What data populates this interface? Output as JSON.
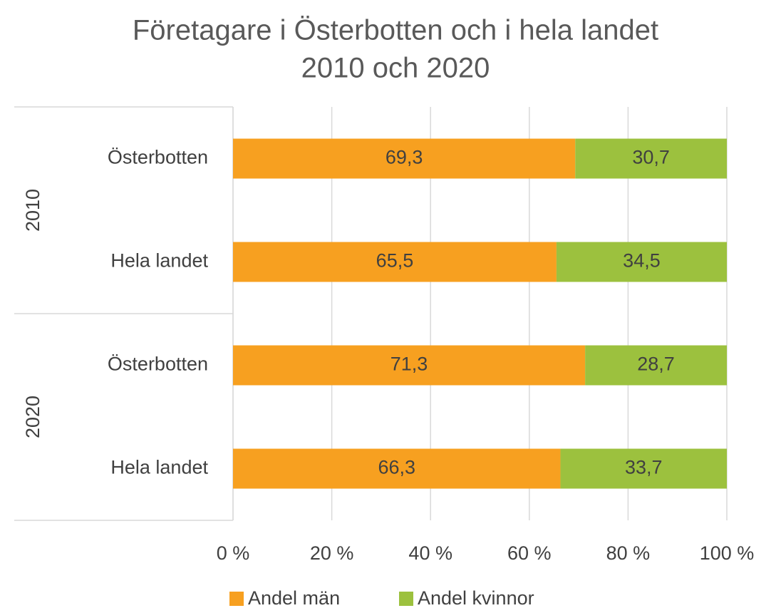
{
  "chart_data": {
    "type": "stacked-bar-horizontal",
    "title": [
      "Företagare i Österbotten och i hela landet",
      "2010 och 2020"
    ],
    "groups": [
      "2010",
      "2020"
    ],
    "categories": [
      "Österbotten",
      "Hela landet",
      "Österbotten",
      "Hela landet"
    ],
    "series": [
      {
        "name": "Andel män",
        "color": "#f7a020",
        "values": [
          69.3,
          65.5,
          71.3,
          66.3
        ],
        "value_labels": [
          "69,3",
          "65,5",
          "71,3",
          "66,3"
        ]
      },
      {
        "name": "Andel kvinnor",
        "color": "#9cc13e",
        "values": [
          30.7,
          34.5,
          28.7,
          33.7
        ],
        "value_labels": [
          "30,7",
          "34,5",
          "28,7",
          "33,7"
        ]
      }
    ],
    "xlim": [
      0,
      100
    ],
    "xticks": [
      {
        "value": 0,
        "label": "0 %"
      },
      {
        "value": 20,
        "label": "20 %"
      },
      {
        "value": 40,
        "label": "40 %"
      },
      {
        "value": 60,
        "label": "60 %"
      },
      {
        "value": 80,
        "label": "80 %"
      },
      {
        "value": 100,
        "label": "100 %"
      }
    ],
    "grid": true,
    "legend": "bottom"
  }
}
